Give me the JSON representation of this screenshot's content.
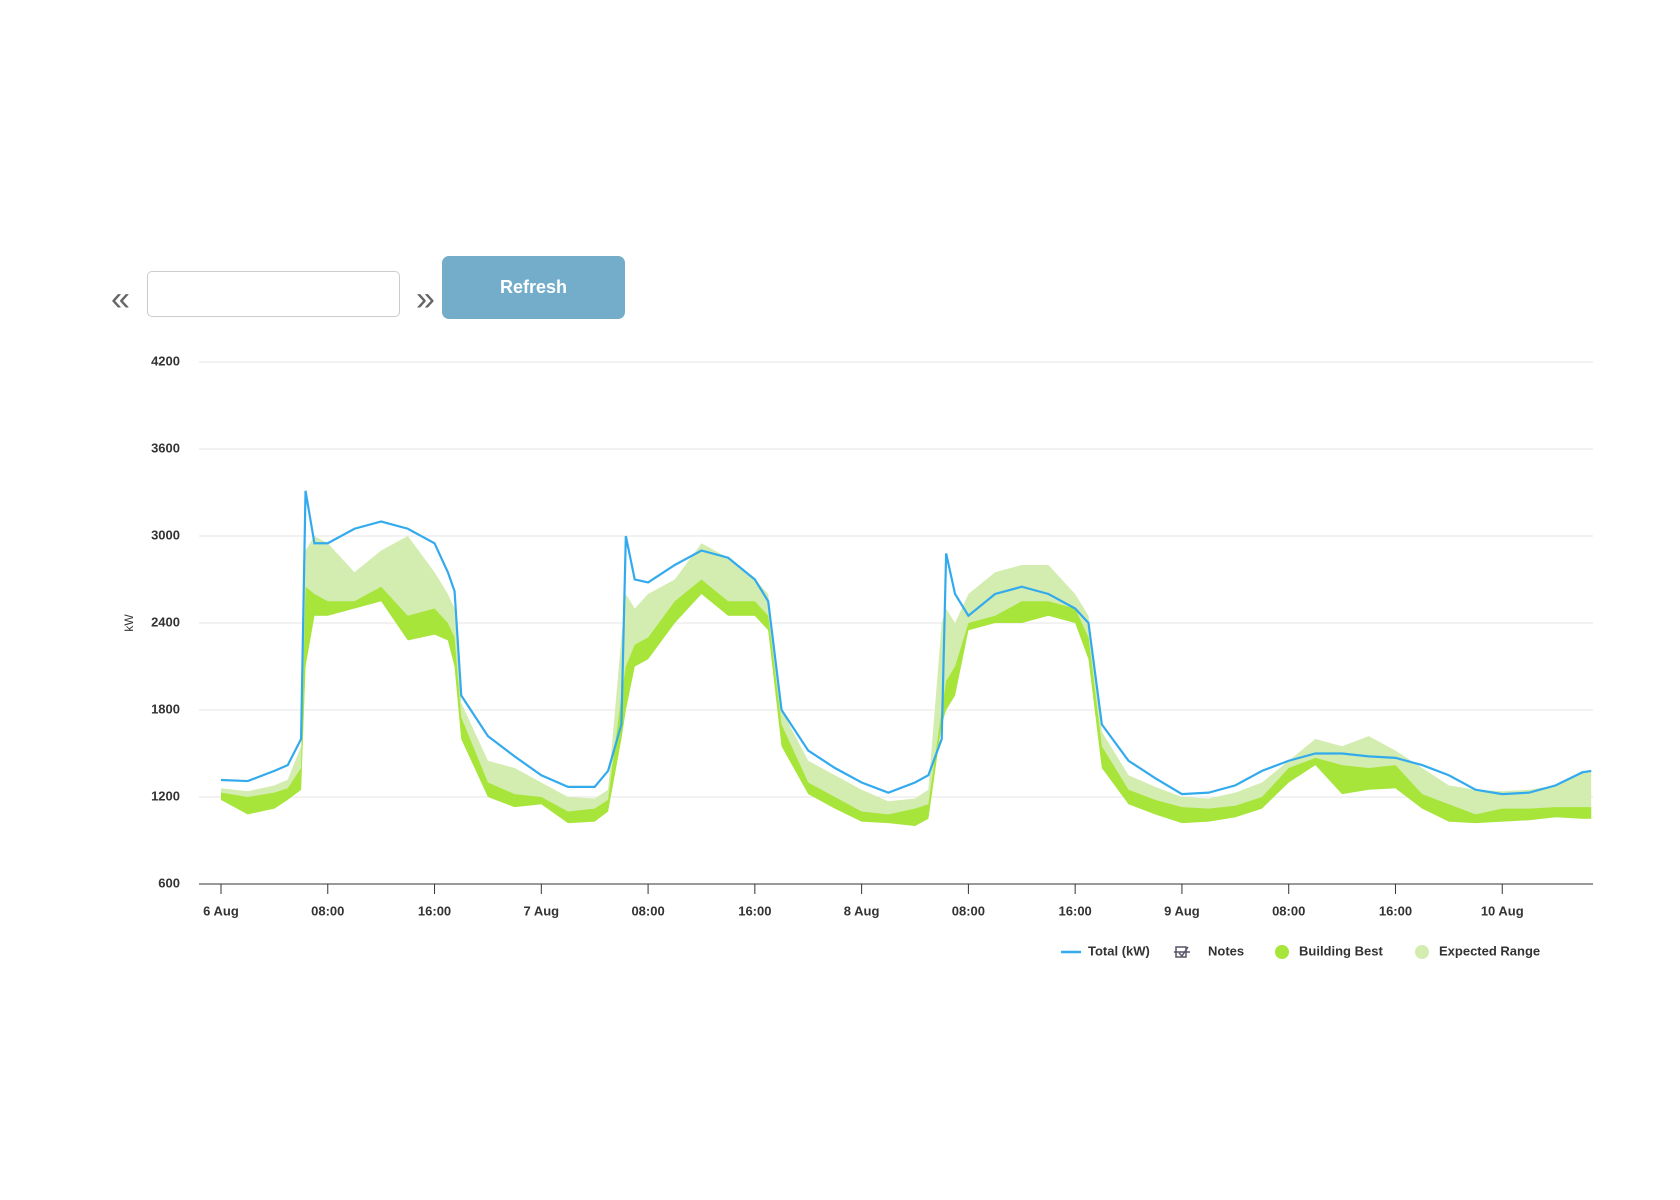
{
  "ui": {
    "prev": "«",
    "next": "»",
    "button": "Refresh"
  },
  "chart_data": {
    "type": "line",
    "y_label": "kW",
    "notes_label": "Notes",
    "xlim": [
      "6 Aug 00:00",
      "10 Aug 06:48"
    ],
    "xticks": [
      {
        "value": "6 Aug 00:00",
        "label": "6 Aug"
      },
      {
        "value": "6 Aug 08:00",
        "label": "08:00"
      },
      {
        "value": "6 Aug 16:00",
        "label": "16:00"
      },
      {
        "value": "7 Aug 00:00",
        "label": "7 Aug"
      },
      {
        "value": "7 Aug 08:00",
        "label": "08:00"
      },
      {
        "value": "7 Aug 16:00",
        "label": "16:00"
      },
      {
        "value": "8 Aug 00:00",
        "label": "8 Aug"
      },
      {
        "value": "8 Aug 08:00",
        "label": "08:00"
      },
      {
        "value": "8 Aug 16:00",
        "label": "16:00"
      },
      {
        "value": "9 Aug 00:00",
        "label": "9 Aug"
      },
      {
        "value": "9 Aug 08:00",
        "label": "08:00"
      },
      {
        "value": "9 Aug 16:00",
        "label": "16:00"
      },
      {
        "value": "10 Aug 00:00",
        "label": "10 Aug"
      }
    ],
    "ylim": [
      600,
      4200
    ],
    "yticks": [
      600,
      1200,
      1800,
      2400,
      3000,
      3600,
      4200
    ],
    "grid": true,
    "x": [
      "6 Aug 00:00",
      "6 Aug 02:00",
      "6 Aug 04:00",
      "6 Aug 05:00",
      "6 Aug 06:00",
      "6 Aug 06:20",
      "6 Aug 07:00",
      "6 Aug 08:00",
      "6 Aug 10:00",
      "6 Aug 12:00",
      "6 Aug 14:00",
      "6 Aug 16:00",
      "6 Aug 17:00",
      "6 Aug 17:30",
      "6 Aug 18:00",
      "6 Aug 20:00",
      "6 Aug 22:00",
      "7 Aug 00:00",
      "7 Aug 02:00",
      "7 Aug 04:00",
      "7 Aug 05:00",
      "7 Aug 06:00",
      "7 Aug 06:20",
      "7 Aug 07:00",
      "7 Aug 08:00",
      "7 Aug 10:00",
      "7 Aug 12:00",
      "7 Aug 14:00",
      "7 Aug 16:00",
      "7 Aug 17:00",
      "7 Aug 18:00",
      "7 Aug 20:00",
      "7 Aug 22:00",
      "8 Aug 00:00",
      "8 Aug 02:00",
      "8 Aug 04:00",
      "8 Aug 05:00",
      "8 Aug 06:00",
      "8 Aug 06:20",
      "8 Aug 07:00",
      "8 Aug 08:00",
      "8 Aug 10:00",
      "8 Aug 12:00",
      "8 Aug 14:00",
      "8 Aug 16:00",
      "8 Aug 17:00",
      "8 Aug 18:00",
      "8 Aug 20:00",
      "8 Aug 22:00",
      "9 Aug 00:00",
      "9 Aug 02:00",
      "9 Aug 04:00",
      "9 Aug 06:00",
      "9 Aug 08:00",
      "9 Aug 10:00",
      "9 Aug 12:00",
      "9 Aug 14:00",
      "9 Aug 16:00",
      "9 Aug 18:00",
      "9 Aug 20:00",
      "9 Aug 22:00",
      "10 Aug 00:00",
      "10 Aug 02:00",
      "10 Aug 04:00",
      "10 Aug 06:00",
      "10 Aug 06:40"
    ],
    "series": [
      {
        "name": "Total (kW)",
        "kind": "line",
        "color": "#33aaee",
        "values": [
          1317,
          1310,
          1380,
          1420,
          1600,
          3312,
          2950,
          2950,
          3050,
          3100,
          3050,
          2950,
          2750,
          2620,
          1900,
          1620,
          1480,
          1350,
          1270,
          1270,
          1380,
          1700,
          3000,
          2700,
          2680,
          2800,
          2900,
          2850,
          2700,
          2550,
          1800,
          1520,
          1400,
          1300,
          1230,
          1300,
          1350,
          1600,
          2880,
          2600,
          2450,
          2600,
          2650,
          2600,
          2500,
          2400,
          1700,
          1450,
          1330,
          1220,
          1230,
          1280,
          1380,
          1450,
          1500,
          1500,
          1480,
          1470,
          1420,
          1350,
          1250,
          1220,
          1230,
          1280,
          1370,
          1380
        ]
      },
      {
        "name": "Building Best",
        "kind": "band",
        "color": "#a8e53a",
        "low": [
          1180,
          1080,
          1120,
          1180,
          1250,
          2100,
          2450,
          2450,
          2500,
          2550,
          2280,
          2320,
          2280,
          2100,
          1600,
          1200,
          1130,
          1150,
          1020,
          1030,
          1100,
          1600,
          1800,
          2100,
          2150,
          2400,
          2600,
          2450,
          2450,
          2350,
          1550,
          1220,
          1120,
          1030,
          1020,
          1000,
          1050,
          1700,
          1800,
          1900,
          2350,
          2400,
          2400,
          2450,
          2400,
          2150,
          1400,
          1150,
          1080,
          1020,
          1030,
          1060,
          1120,
          1300,
          1420,
          1220,
          1250,
          1260,
          1120,
          1030,
          1020,
          1030,
          1040,
          1060,
          1050,
          1050
        ],
        "high": [
          1230,
          1200,
          1230,
          1260,
          1400,
          2650,
          2600,
          2550,
          2550,
          2650,
          2450,
          2500,
          2400,
          2300,
          1750,
          1300,
          1220,
          1200,
          1100,
          1120,
          1180,
          1900,
          2100,
          2250,
          2300,
          2550,
          2700,
          2550,
          2550,
          2450,
          1700,
          1300,
          1200,
          1100,
          1080,
          1120,
          1150,
          1800,
          2000,
          2100,
          2400,
          2450,
          2550,
          2550,
          2500,
          2300,
          1550,
          1250,
          1180,
          1130,
          1120,
          1140,
          1200,
          1400,
          1470,
          1420,
          1400,
          1420,
          1220,
          1150,
          1080,
          1120,
          1120,
          1130,
          1130,
          1130
        ]
      },
      {
        "name": "Expected Range",
        "kind": "band",
        "color": "#d3ecb0",
        "low": [
          1180,
          1080,
          1120,
          1180,
          1250,
          2100,
          2450,
          2450,
          2500,
          2550,
          2280,
          2320,
          2280,
          2100,
          1600,
          1200,
          1130,
          1150,
          1020,
          1030,
          1100,
          1600,
          1800,
          2100,
          2150,
          2400,
          2600,
          2450,
          2450,
          2350,
          1550,
          1220,
          1120,
          1030,
          1020,
          1000,
          1050,
          1700,
          1800,
          1900,
          2350,
          2400,
          2400,
          2450,
          2400,
          2150,
          1400,
          1150,
          1080,
          1020,
          1030,
          1060,
          1120,
          1300,
          1420,
          1220,
          1250,
          1260,
          1120,
          1030,
          1020,
          1030,
          1040,
          1060,
          1050,
          1050
        ],
        "high": [
          1260,
          1240,
          1280,
          1320,
          1550,
          2900,
          3000,
          2950,
          2750,
          2900,
          3000,
          2750,
          2600,
          2500,
          1850,
          1450,
          1400,
          1300,
          1200,
          1190,
          1250,
          2300,
          2600,
          2500,
          2600,
          2700,
          2950,
          2850,
          2700,
          2600,
          1800,
          1450,
          1350,
          1250,
          1170,
          1190,
          1250,
          2400,
          2500,
          2400,
          2600,
          2750,
          2800,
          2800,
          2600,
          2450,
          1650,
          1350,
          1270,
          1200,
          1190,
          1230,
          1300,
          1450,
          1600,
          1550,
          1620,
          1520,
          1400,
          1280,
          1250,
          1240,
          1250,
          1280,
          1380,
          1380
        ]
      }
    ]
  }
}
